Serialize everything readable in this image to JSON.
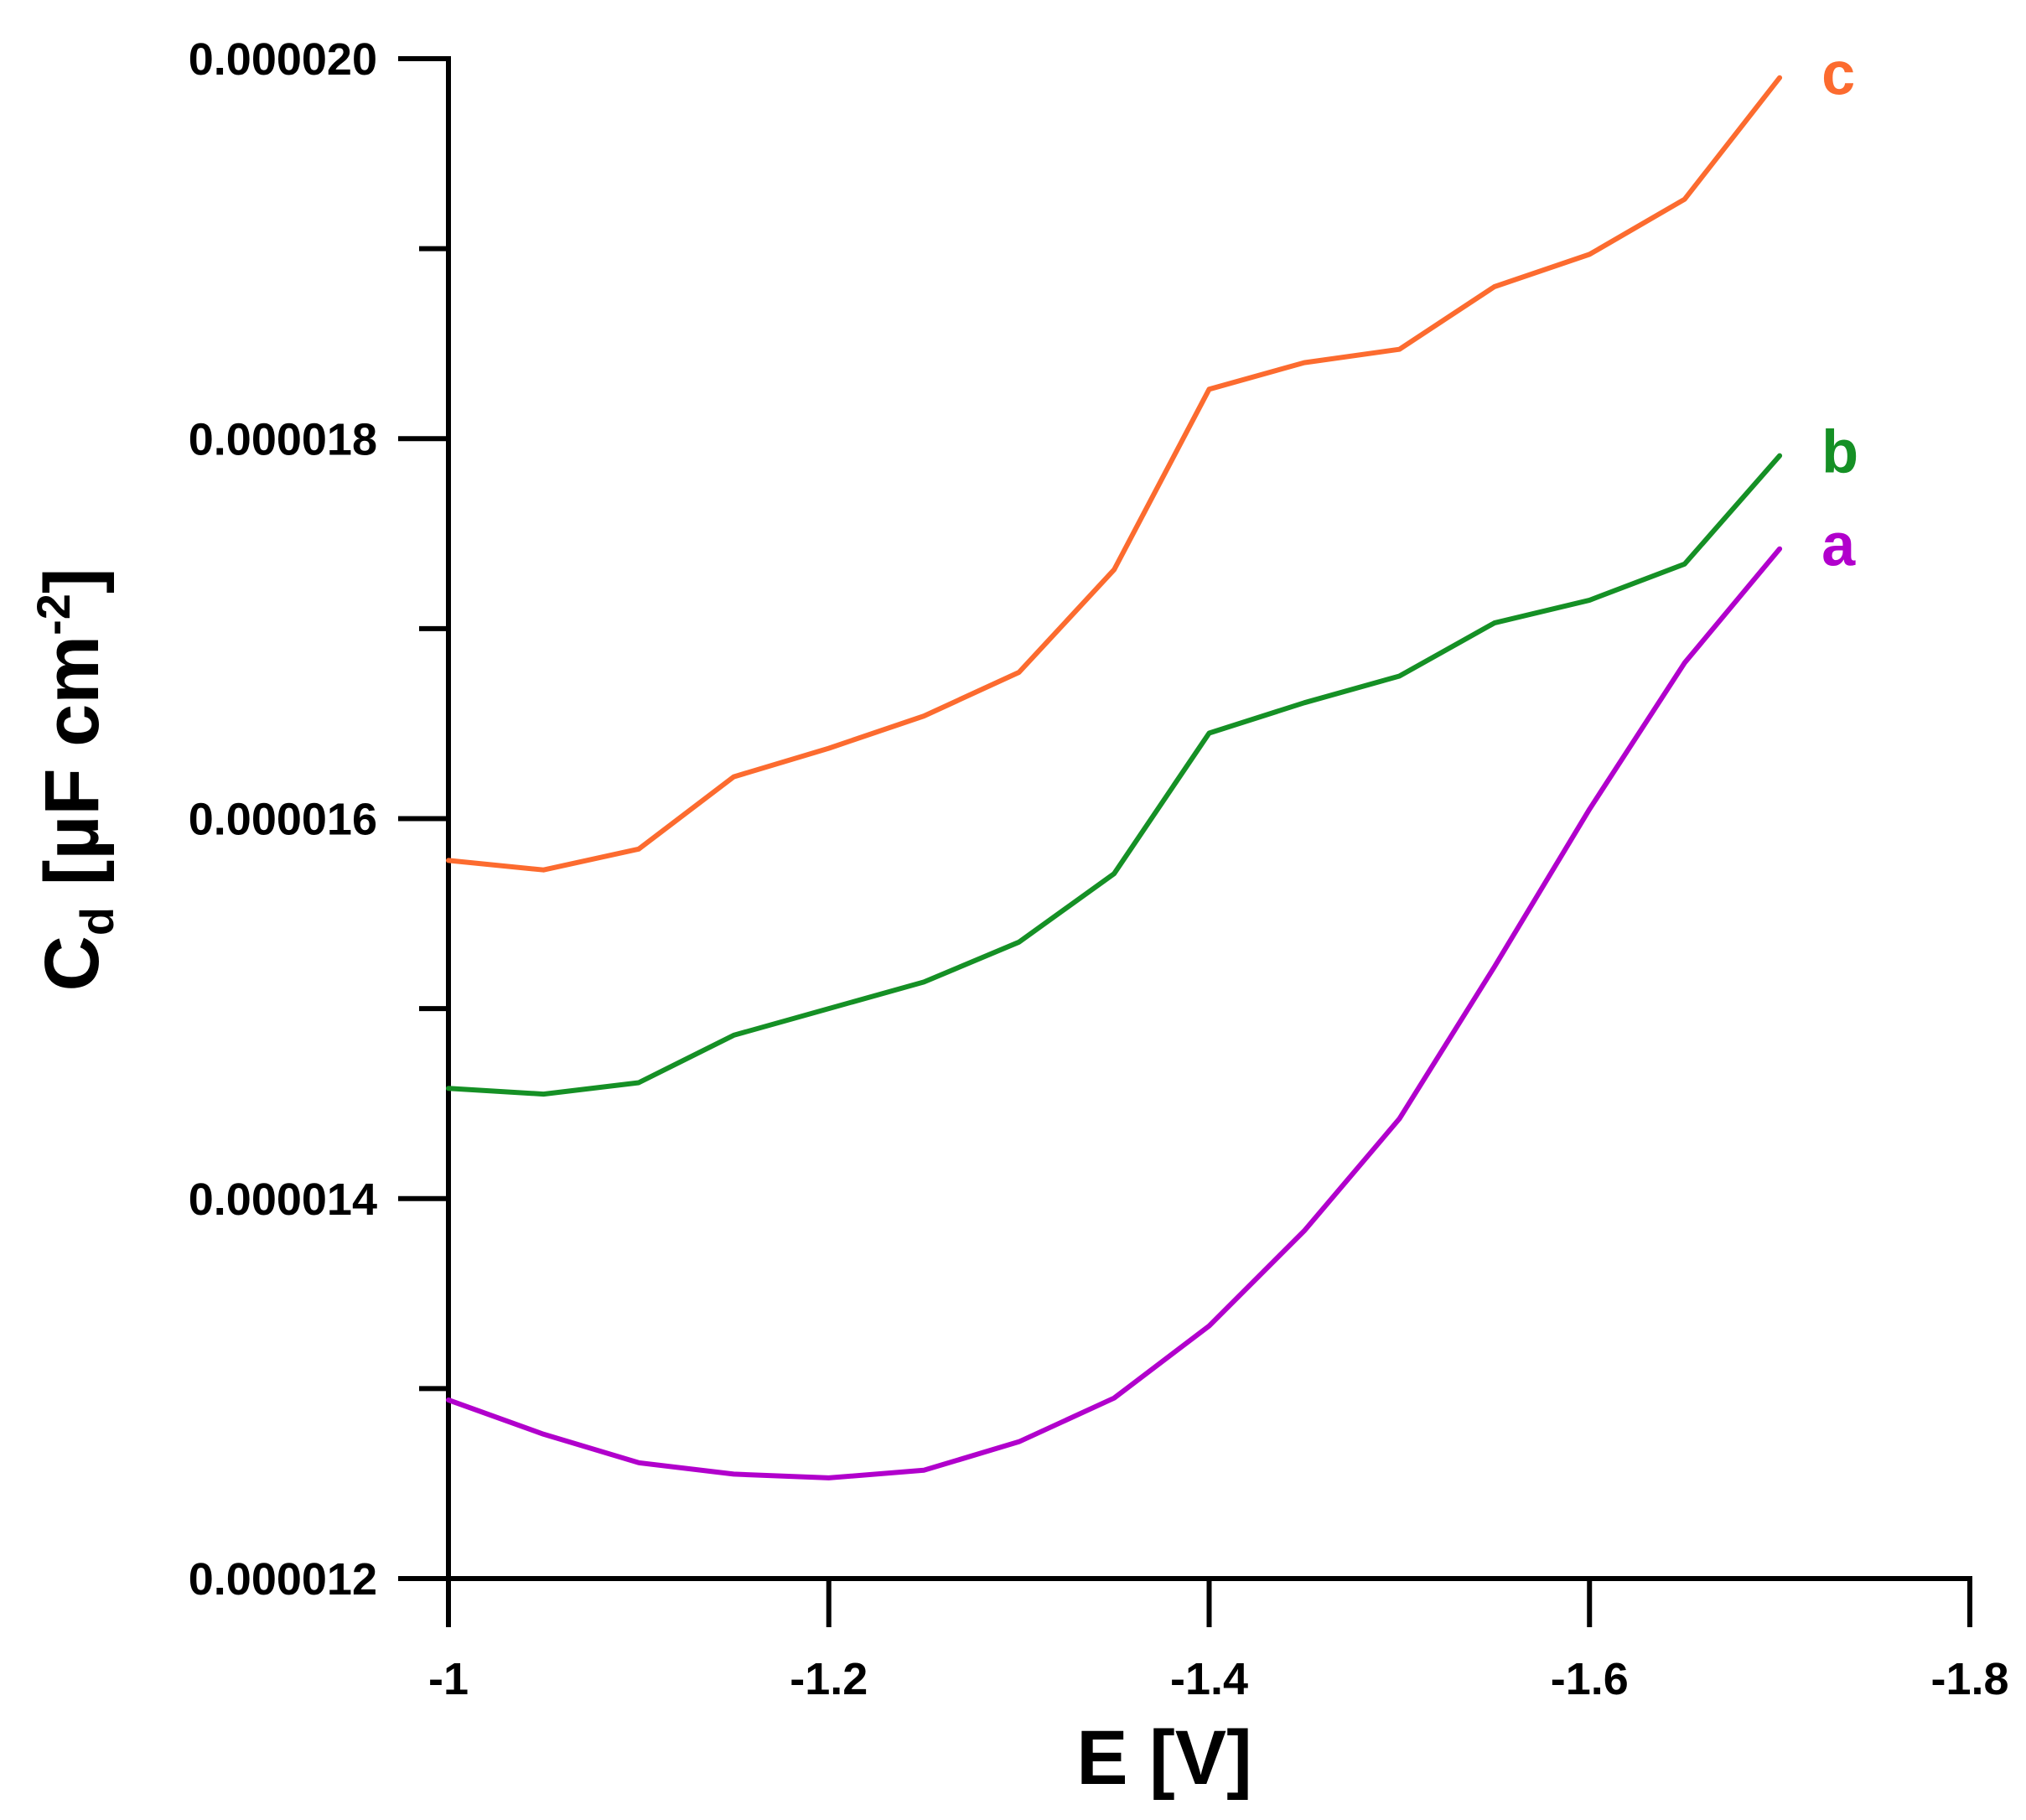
{
  "chart_data": {
    "type": "line",
    "title": "",
    "xlabel": "E [V]",
    "ylabel": {
      "main": "C",
      "subscript": "d",
      "units": " [µF cm",
      "superscript": "-2",
      "close": "]"
    },
    "xlim": [
      -1.0,
      -1.8
    ],
    "ylim": [
      1.2e-05,
      2e-05
    ],
    "x_ticks": [
      -1.0,
      -1.2,
      -1.4,
      -1.6,
      -1.8
    ],
    "x_tick_labels": [
      "-1",
      "-1.2",
      "-1.4",
      "-1.6",
      "-1.8"
    ],
    "y_ticks_major": [
      1.2e-05,
      1.4e-05,
      1.6e-05,
      1.8e-05,
      2e-05
    ],
    "y_tick_labels": [
      "0.000012",
      "0.000014",
      "0.000016",
      "0.000018",
      "0.000020"
    ],
    "y_ticks_minor": [
      1.3e-05,
      1.5e-05,
      1.7e-05,
      1.9e-05
    ],
    "grid": false,
    "x": [
      -1.0,
      -1.05,
      -1.1,
      -1.15,
      -1.2,
      -1.25,
      -1.3,
      -1.35,
      -1.4,
      -1.45,
      -1.5,
      -1.55,
      -1.6,
      -1.65,
      -1.7
    ],
    "series": [
      {
        "name": "a",
        "color": "#b100cc",
        "values": [
          1.294e-05,
          1.276e-05,
          1.261e-05,
          1.255e-05,
          1.253e-05,
          1.257e-05,
          1.272e-05,
          1.295e-05,
          1.333e-05,
          1.383e-05,
          1.442e-05,
          1.522e-05,
          1.605e-05,
          1.682e-05,
          1.742e-05
        ]
      },
      {
        "name": "b",
        "color": "#159025",
        "values": [
          1.458e-05,
          1.455e-05,
          1.461e-05,
          1.486e-05,
          1.5e-05,
          1.514e-05,
          1.535e-05,
          1.571e-05,
          1.645e-05,
          1.661e-05,
          1.675e-05,
          1.703e-05,
          1.715e-05,
          1.734e-05,
          1.791e-05
        ]
      },
      {
        "name": "c",
        "color": "#fc6b2f",
        "values": [
          1.578e-05,
          1.573e-05,
          1.584e-05,
          1.622e-05,
          1.637e-05,
          1.654e-05,
          1.677e-05,
          1.731e-05,
          1.826e-05,
          1.84e-05,
          1.847e-05,
          1.88e-05,
          1.897e-05,
          1.926e-05,
          1.99e-05
        ]
      }
    ]
  }
}
